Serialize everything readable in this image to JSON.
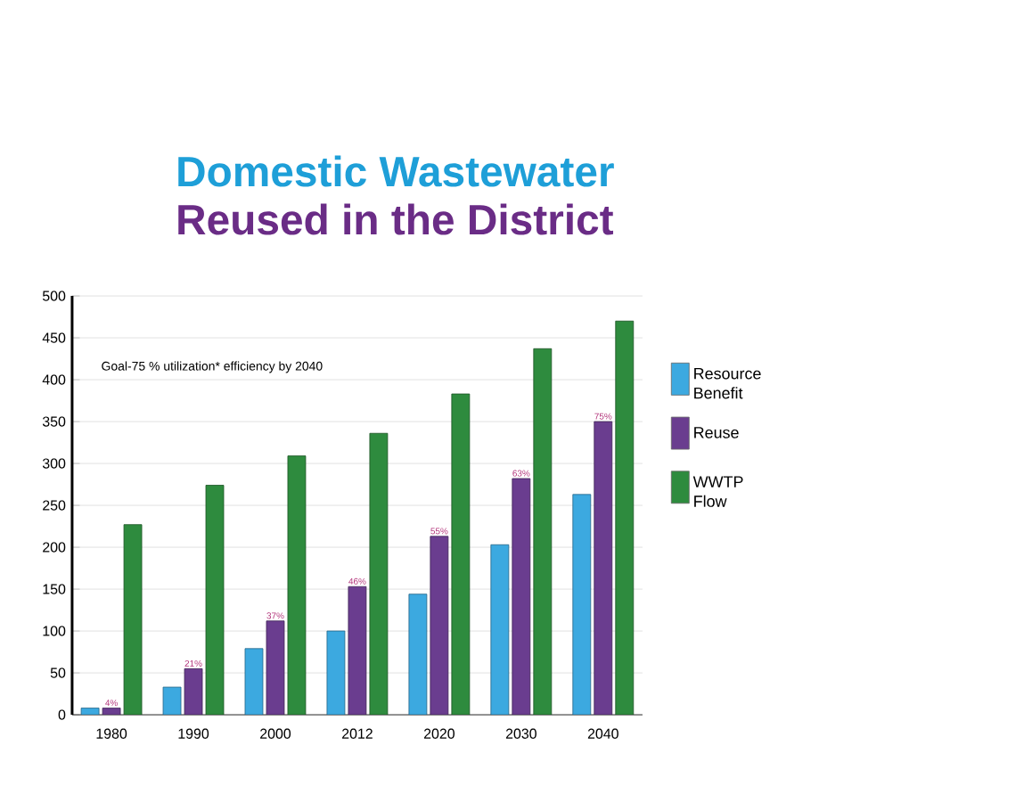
{
  "chart_data": {
    "type": "bar",
    "title": "Domestic Wastewater",
    "subtitle": "Reused in the District",
    "annotations": [
      "Goal-75 % utilization* efficiency by 2040",
      {
        "text": "4%",
        "x": "1980",
        "y": 8
      },
      {
        "text": "21%",
        "x": "1990",
        "y": 55
      },
      {
        "text": "37%",
        "x": "2000",
        "y": 112
      },
      {
        "text": "46%",
        "x": "2012",
        "y": 153
      },
      {
        "text": "55%",
        "x": "2020",
        "y": 213
      },
      {
        "text": "63%",
        "x": "2030",
        "y": 282
      },
      {
        "text": "75%",
        "x": "2040",
        "y": 350
      }
    ],
    "categories": [
      "1980",
      "1990",
      "2000",
      "2012",
      "2020",
      "2030",
      "2040"
    ],
    "series": [
      {
        "name": "Resource Benefit",
        "color": "#3ca9e0",
        "values": [
          8,
          33,
          79,
          100,
          144,
          203,
          263
        ]
      },
      {
        "name": "Reuse",
        "color": "#6a3d8f",
        "values": [
          8,
          55,
          112,
          153,
          213,
          282,
          350
        ]
      },
      {
        "name": "WWTP Flow",
        "color": "#2e8b3e",
        "values": [
          227,
          274,
          309,
          336,
          383,
          437,
          470
        ]
      }
    ],
    "ylim": [
      0,
      500
    ],
    "yticks": [
      0,
      50,
      100,
      150,
      200,
      250,
      300,
      350,
      400,
      450,
      500
    ],
    "grid": "y",
    "legend": "right"
  }
}
